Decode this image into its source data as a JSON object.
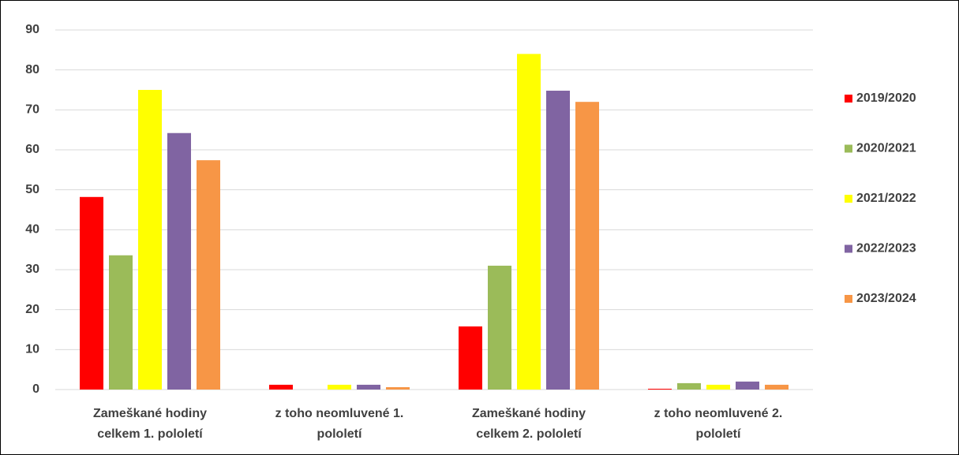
{
  "chart_data": {
    "type": "bar",
    "categories": [
      "Zameškané hodiny\ncelkem  1. pololetí",
      "z toho neomluvené 1.\npololetí",
      "Zameškané hodiny\ncelkem 2. pololetí",
      "z toho neomluvené 2.\npololetí"
    ],
    "series": [
      {
        "name": "2019/2020",
        "color": "#ff0000",
        "values": [
          48.2,
          1.2,
          15.8,
          0.2
        ]
      },
      {
        "name": "2020/2021",
        "color": "#9bbb59",
        "values": [
          33.6,
          0,
          31,
          1.6
        ]
      },
      {
        "name": "2021/2022",
        "color": "#ffff00",
        "values": [
          75,
          1.2,
          84,
          1.2
        ]
      },
      {
        "name": "2022/2023",
        "color": "#8064a2",
        "values": [
          64.2,
          1.2,
          74.8,
          2
        ]
      },
      {
        "name": "2023/2024",
        "color": "#f79646",
        "values": [
          57.4,
          0.6,
          72,
          1.2
        ]
      }
    ],
    "ylim": [
      0,
      90
    ],
    "yticks": [
      0,
      10,
      20,
      30,
      40,
      50,
      60,
      70,
      80,
      90
    ],
    "grid": true,
    "legend": "right"
  }
}
